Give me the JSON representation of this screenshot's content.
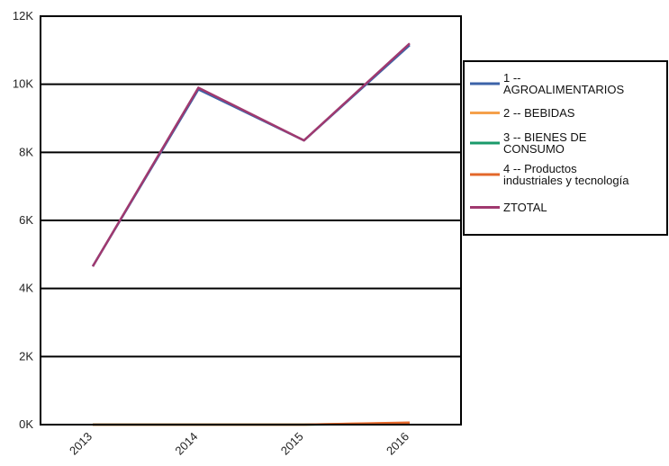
{
  "chart_data": {
    "type": "line",
    "title": "",
    "xlabel": "",
    "ylabel": "",
    "categories": [
      "2013",
      "2014",
      "2015",
      "2016"
    ],
    "ylim": [
      0,
      12000
    ],
    "yticks": [
      0,
      2000,
      4000,
      6000,
      8000,
      10000,
      12000
    ],
    "ytick_labels": [
      "0K",
      "2K",
      "4K",
      "6K",
      "8K",
      "10K",
      "12K"
    ],
    "grid": "horizontal",
    "legend_position": "right",
    "series": [
      {
        "name": "1 -- AGROALIMENTARIOS",
        "legend_lines": [
          "1 --",
          "AGROALIMENTARIOS"
        ],
        "color": "#3c63a8",
        "values": [
          4650,
          9850,
          8350,
          11150
        ]
      },
      {
        "name": "2 -- BEBIDAS",
        "legend_lines": [
          "2 -- BEBIDAS"
        ],
        "color": "#f5a04b",
        "values": [
          0,
          0,
          0,
          50
        ]
      },
      {
        "name": "3 -- BIENES DE CONSUMO",
        "legend_lines": [
          "3 -- BIENES DE",
          "CONSUMO"
        ],
        "color": "#1a9a6a",
        "values": [
          0,
          0,
          0,
          30
        ]
      },
      {
        "name": "4 -- Productos industriales y tecnología",
        "legend_lines": [
          "4 -- Productos",
          "industriales y tecnología"
        ],
        "color": "#e3672a",
        "values": [
          0,
          0,
          0,
          60
        ]
      },
      {
        "name": "ZTOTAL",
        "legend_lines": [
          "ZTOTAL"
        ],
        "color": "#a0396f",
        "values": [
          4650,
          9900,
          8350,
          11200
        ]
      }
    ]
  }
}
